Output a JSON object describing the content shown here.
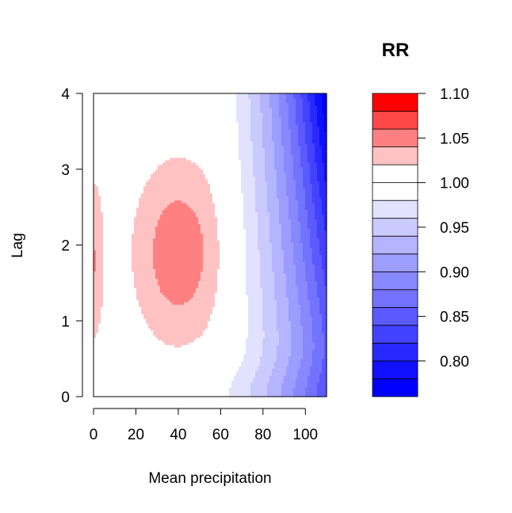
{
  "chart_data": {
    "type": "heatmap",
    "subtype": "filled-contour",
    "xlabel": "Mean precipitation",
    "ylabel": "Lag",
    "xlim": [
      0,
      110
    ],
    "ylim": [
      0,
      4
    ],
    "x_ticks": [
      0,
      20,
      40,
      60,
      80,
      100
    ],
    "y_ticks": [
      0,
      1,
      2,
      3,
      4
    ],
    "legend": {
      "title": "RR",
      "position": "right",
      "tick_labels": [
        "1.10",
        "1.05",
        "1.00",
        "0.95",
        "0.90",
        "0.85",
        "0.80"
      ],
      "tick_values": [
        1.1,
        1.05,
        1.0,
        0.95,
        0.9,
        0.85,
        0.8
      ],
      "breaks": [
        0.76,
        0.78,
        0.8,
        0.82,
        0.84,
        0.86,
        0.88,
        0.9,
        0.92,
        0.94,
        0.96,
        0.98,
        1.0,
        1.02,
        1.04,
        1.06,
        1.08,
        1.1
      ],
      "colors": [
        "#0000ff",
        "#1010ff",
        "#2929ff",
        "#4242ff",
        "#5a5aff",
        "#7373ff",
        "#8888ff",
        "#9d9dff",
        "#b4b4ff",
        "#cacaff",
        "#e2e2ff",
        "#ffffff",
        "#ffffff",
        "#ffc2c2",
        "#ff8080",
        "#ff4848",
        "#ff0000"
      ]
    },
    "surface": {
      "description": "RR as a function of mean precipitation (x) and lag (y)",
      "base": 1.005,
      "peak_center": [
        40,
        1.9
      ],
      "peak_height": 0.05,
      "edge_center": [
        0,
        1.8
      ],
      "edge_height": 0.035,
      "min_corner": [
        110,
        4
      ],
      "min_value": 0.76
    }
  }
}
